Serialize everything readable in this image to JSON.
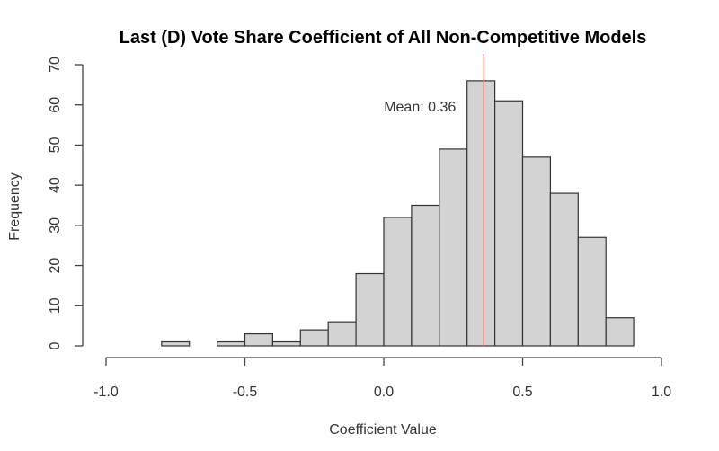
{
  "chart_data": {
    "type": "bar",
    "title": "Last (D) Vote Share Coefficient of All Non-Competitive Models",
    "xlabel": "Coefficient Value",
    "ylabel": "Frequency",
    "xlim": [
      -1.0,
      1.0
    ],
    "ylim": [
      0,
      70
    ],
    "x_ticks": [
      -1.0,
      -0.5,
      0.0,
      0.5,
      1.0
    ],
    "x_tick_labels": [
      "-1.0",
      "-0.5",
      "0.0",
      "0.5",
      "1.0"
    ],
    "y_ticks": [
      0,
      10,
      20,
      30,
      40,
      50,
      60,
      70
    ],
    "y_tick_labels": [
      "0",
      "10",
      "20",
      "30",
      "40",
      "50",
      "60",
      "70"
    ],
    "bins": [
      {
        "start": -0.8,
        "end": -0.7,
        "count": 1
      },
      {
        "start": -0.7,
        "end": -0.6,
        "count": 0
      },
      {
        "start": -0.6,
        "end": -0.5,
        "count": 1
      },
      {
        "start": -0.5,
        "end": -0.4,
        "count": 3
      },
      {
        "start": -0.4,
        "end": -0.3,
        "count": 1
      },
      {
        "start": -0.3,
        "end": -0.2,
        "count": 4
      },
      {
        "start": -0.2,
        "end": -0.1,
        "count": 6
      },
      {
        "start": -0.1,
        "end": 0.0,
        "count": 18
      },
      {
        "start": 0.0,
        "end": 0.1,
        "count": 32
      },
      {
        "start": 0.1,
        "end": 0.2,
        "count": 35
      },
      {
        "start": 0.2,
        "end": 0.3,
        "count": 49
      },
      {
        "start": 0.3,
        "end": 0.4,
        "count": 66
      },
      {
        "start": 0.4,
        "end": 0.5,
        "count": 61
      },
      {
        "start": 0.5,
        "end": 0.6,
        "count": 47
      },
      {
        "start": 0.6,
        "end": 0.7,
        "count": 38
      },
      {
        "start": 0.7,
        "end": 0.8,
        "count": 27
      },
      {
        "start": 0.8,
        "end": 0.9,
        "count": 7
      }
    ],
    "mean_line": {
      "value": 0.36,
      "color": "#e8706b"
    },
    "annotation": "Mean: 0.36",
    "bar_fill": "#d3d3d3",
    "grid": false
  }
}
